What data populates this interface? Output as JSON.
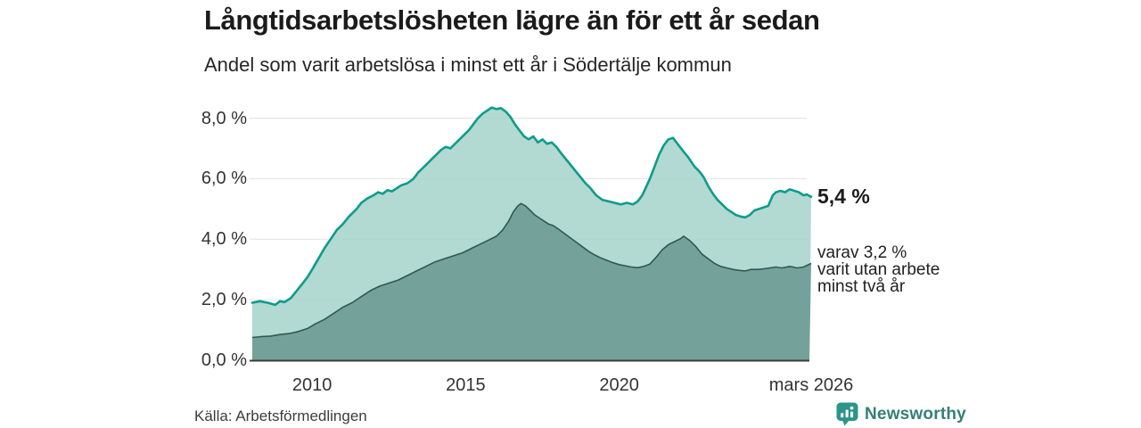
{
  "header": {
    "title": "Långtidsarbetslösheten lägre än för ett år sedan",
    "subtitle": "Andel som varit arbetslösa i minst ett år i Södertälje kommun"
  },
  "annotations": {
    "latest_total": {
      "text": "5,4 %",
      "value": 5.4
    },
    "secondary": {
      "value": 3.2,
      "lines": [
        "varav 3,2 %",
        "varit utan arbete",
        "minst två år"
      ]
    }
  },
  "source": {
    "label": "Källa: Arbetsförmedlingen"
  },
  "branding": {
    "name": "Newsworthy",
    "icon": "bar-chart-speech-bubble-icon",
    "color": "#2c9489",
    "text_color": "#347f76"
  },
  "colors": {
    "line_total": "#0e9c8a",
    "fill_total": "#a4d2ca",
    "line_two_years": "#2d5952",
    "fill_two_years": "#74a29a",
    "gridline": "#e2e2e2",
    "axis": "#3a3a3a",
    "text": "#1b1b1b"
  },
  "chart_data": {
    "type": "area",
    "title": "Långtidsarbetslösheten lägre än för ett år sedan",
    "subtitle": "Andel som varit arbetslösa i minst ett år i Södertälje kommun",
    "unit": "%",
    "xlim": [
      2008.05,
      2026.25
    ],
    "ylim": [
      0,
      8.5
    ],
    "grid": true,
    "y_ticks": [
      {
        "value": 0,
        "label": "0,0 %"
      },
      {
        "value": 2,
        "label": "2,0 %"
      },
      {
        "value": 4,
        "label": "4,0 %"
      },
      {
        "value": 6,
        "label": "6,0 %"
      },
      {
        "value": 8,
        "label": "8,0 %"
      }
    ],
    "x_ticks": [
      {
        "year": 2010,
        "label": "2010"
      },
      {
        "year": 2015,
        "label": "2015"
      },
      {
        "year": 2020,
        "label": "2020"
      },
      {
        "year": 2026.25,
        "label": "mars 2026"
      }
    ],
    "series": [
      {
        "name": "Arbetslösa minst ett år",
        "end_label": "5,4 %",
        "line_color": "#0e9c8a",
        "fill_color": "#a4d2ca",
        "points": [
          [
            2008.05,
            1.9
          ],
          [
            2008.3,
            1.95
          ],
          [
            2008.55,
            1.9
          ],
          [
            2008.8,
            1.83
          ],
          [
            2008.95,
            1.95
          ],
          [
            2009.1,
            1.92
          ],
          [
            2009.3,
            2.05
          ],
          [
            2009.5,
            2.3
          ],
          [
            2009.7,
            2.55
          ],
          [
            2009.85,
            2.75
          ],
          [
            2010.0,
            3.0
          ],
          [
            2010.2,
            3.35
          ],
          [
            2010.4,
            3.7
          ],
          [
            2010.6,
            4.0
          ],
          [
            2010.8,
            4.3
          ],
          [
            2011.0,
            4.5
          ],
          [
            2011.2,
            4.75
          ],
          [
            2011.45,
            5.0
          ],
          [
            2011.6,
            5.2
          ],
          [
            2011.8,
            5.35
          ],
          [
            2012.0,
            5.45
          ],
          [
            2012.15,
            5.55
          ],
          [
            2012.3,
            5.5
          ],
          [
            2012.45,
            5.62
          ],
          [
            2012.6,
            5.58
          ],
          [
            2012.75,
            5.68
          ],
          [
            2012.9,
            5.78
          ],
          [
            2013.1,
            5.85
          ],
          [
            2013.3,
            6.0
          ],
          [
            2013.45,
            6.2
          ],
          [
            2013.6,
            6.35
          ],
          [
            2013.75,
            6.5
          ],
          [
            2013.9,
            6.65
          ],
          [
            2014.05,
            6.8
          ],
          [
            2014.2,
            6.95
          ],
          [
            2014.35,
            7.05
          ],
          [
            2014.5,
            7.0
          ],
          [
            2014.65,
            7.15
          ],
          [
            2014.8,
            7.3
          ],
          [
            2014.95,
            7.45
          ],
          [
            2015.1,
            7.6
          ],
          [
            2015.25,
            7.8
          ],
          [
            2015.4,
            8.0
          ],
          [
            2015.55,
            8.15
          ],
          [
            2015.7,
            8.25
          ],
          [
            2015.85,
            8.35
          ],
          [
            2016.0,
            8.3
          ],
          [
            2016.15,
            8.33
          ],
          [
            2016.3,
            8.22
          ],
          [
            2016.45,
            8.05
          ],
          [
            2016.6,
            7.8
          ],
          [
            2016.75,
            7.6
          ],
          [
            2016.9,
            7.4
          ],
          [
            2017.05,
            7.3
          ],
          [
            2017.2,
            7.4
          ],
          [
            2017.35,
            7.2
          ],
          [
            2017.5,
            7.3
          ],
          [
            2017.65,
            7.15
          ],
          [
            2017.8,
            7.2
          ],
          [
            2017.95,
            7.05
          ],
          [
            2018.1,
            6.85
          ],
          [
            2018.3,
            6.6
          ],
          [
            2018.5,
            6.35
          ],
          [
            2018.7,
            6.1
          ],
          [
            2018.9,
            5.85
          ],
          [
            2019.05,
            5.7
          ],
          [
            2019.25,
            5.45
          ],
          [
            2019.45,
            5.3
          ],
          [
            2019.65,
            5.25
          ],
          [
            2019.85,
            5.2
          ],
          [
            2020.05,
            5.15
          ],
          [
            2020.25,
            5.2
          ],
          [
            2020.45,
            5.15
          ],
          [
            2020.6,
            5.25
          ],
          [
            2020.75,
            5.45
          ],
          [
            2021.0,
            6.0
          ],
          [
            2021.15,
            6.4
          ],
          [
            2021.3,
            6.8
          ],
          [
            2021.45,
            7.1
          ],
          [
            2021.6,
            7.3
          ],
          [
            2021.75,
            7.35
          ],
          [
            2021.9,
            7.15
          ],
          [
            2022.05,
            6.95
          ],
          [
            2022.25,
            6.7
          ],
          [
            2022.45,
            6.4
          ],
          [
            2022.6,
            6.25
          ],
          [
            2022.75,
            6.05
          ],
          [
            2022.9,
            5.75
          ],
          [
            2023.05,
            5.5
          ],
          [
            2023.2,
            5.3
          ],
          [
            2023.35,
            5.15
          ],
          [
            2023.5,
            5.0
          ],
          [
            2023.65,
            4.9
          ],
          [
            2023.8,
            4.8
          ],
          [
            2023.95,
            4.75
          ],
          [
            2024.1,
            4.72
          ],
          [
            2024.25,
            4.8
          ],
          [
            2024.4,
            4.95
          ],
          [
            2024.55,
            5.0
          ],
          [
            2024.7,
            5.05
          ],
          [
            2024.85,
            5.1
          ],
          [
            2025.0,
            5.45
          ],
          [
            2025.1,
            5.55
          ],
          [
            2025.25,
            5.6
          ],
          [
            2025.4,
            5.55
          ],
          [
            2025.55,
            5.65
          ],
          [
            2025.7,
            5.6
          ],
          [
            2025.85,
            5.55
          ],
          [
            2026.0,
            5.45
          ],
          [
            2026.1,
            5.48
          ],
          [
            2026.25,
            5.4
          ]
        ]
      },
      {
        "name": "Varav arbetslösa minst två år",
        "end_label": "3,2 %",
        "line_color": "#2d5952",
        "fill_color": "#74a29a",
        "points": [
          [
            2008.05,
            0.75
          ],
          [
            2008.35,
            0.78
          ],
          [
            2008.65,
            0.8
          ],
          [
            2008.95,
            0.85
          ],
          [
            2009.25,
            0.88
          ],
          [
            2009.55,
            0.95
          ],
          [
            2009.85,
            1.05
          ],
          [
            2010.1,
            1.2
          ],
          [
            2010.4,
            1.35
          ],
          [
            2010.7,
            1.55
          ],
          [
            2011.0,
            1.75
          ],
          [
            2011.3,
            1.9
          ],
          [
            2011.6,
            2.1
          ],
          [
            2011.9,
            2.3
          ],
          [
            2012.2,
            2.45
          ],
          [
            2012.5,
            2.55
          ],
          [
            2012.8,
            2.65
          ],
          [
            2013.1,
            2.8
          ],
          [
            2013.4,
            2.95
          ],
          [
            2013.7,
            3.1
          ],
          [
            2014.0,
            3.25
          ],
          [
            2014.3,
            3.35
          ],
          [
            2014.6,
            3.45
          ],
          [
            2014.9,
            3.55
          ],
          [
            2015.2,
            3.7
          ],
          [
            2015.5,
            3.85
          ],
          [
            2015.8,
            4.0
          ],
          [
            2016.0,
            4.1
          ],
          [
            2016.2,
            4.3
          ],
          [
            2016.4,
            4.6
          ],
          [
            2016.55,
            4.9
          ],
          [
            2016.7,
            5.1
          ],
          [
            2016.8,
            5.18
          ],
          [
            2016.95,
            5.1
          ],
          [
            2017.1,
            4.95
          ],
          [
            2017.25,
            4.8
          ],
          [
            2017.4,
            4.7
          ],
          [
            2017.55,
            4.6
          ],
          [
            2017.7,
            4.5
          ],
          [
            2017.85,
            4.45
          ],
          [
            2018.0,
            4.35
          ],
          [
            2018.2,
            4.2
          ],
          [
            2018.4,
            4.05
          ],
          [
            2018.6,
            3.9
          ],
          [
            2018.8,
            3.75
          ],
          [
            2019.0,
            3.6
          ],
          [
            2019.2,
            3.48
          ],
          [
            2019.4,
            3.38
          ],
          [
            2019.6,
            3.3
          ],
          [
            2019.8,
            3.22
          ],
          [
            2020.0,
            3.16
          ],
          [
            2020.2,
            3.12
          ],
          [
            2020.4,
            3.08
          ],
          [
            2020.6,
            3.06
          ],
          [
            2020.8,
            3.1
          ],
          [
            2021.0,
            3.18
          ],
          [
            2021.2,
            3.4
          ],
          [
            2021.4,
            3.65
          ],
          [
            2021.6,
            3.82
          ],
          [
            2021.8,
            3.92
          ],
          [
            2022.0,
            4.02
          ],
          [
            2022.1,
            4.1
          ],
          [
            2022.3,
            3.95
          ],
          [
            2022.5,
            3.75
          ],
          [
            2022.7,
            3.5
          ],
          [
            2022.9,
            3.35
          ],
          [
            2023.1,
            3.2
          ],
          [
            2023.3,
            3.1
          ],
          [
            2023.5,
            3.05
          ],
          [
            2023.7,
            3.0
          ],
          [
            2023.9,
            2.97
          ],
          [
            2024.1,
            2.95
          ],
          [
            2024.3,
            3.0
          ],
          [
            2024.5,
            3.0
          ],
          [
            2024.7,
            3.02
          ],
          [
            2024.9,
            3.05
          ],
          [
            2025.1,
            3.08
          ],
          [
            2025.3,
            3.05
          ],
          [
            2025.55,
            3.1
          ],
          [
            2025.8,
            3.05
          ],
          [
            2026.0,
            3.08
          ],
          [
            2026.25,
            3.2
          ]
        ]
      }
    ]
  }
}
